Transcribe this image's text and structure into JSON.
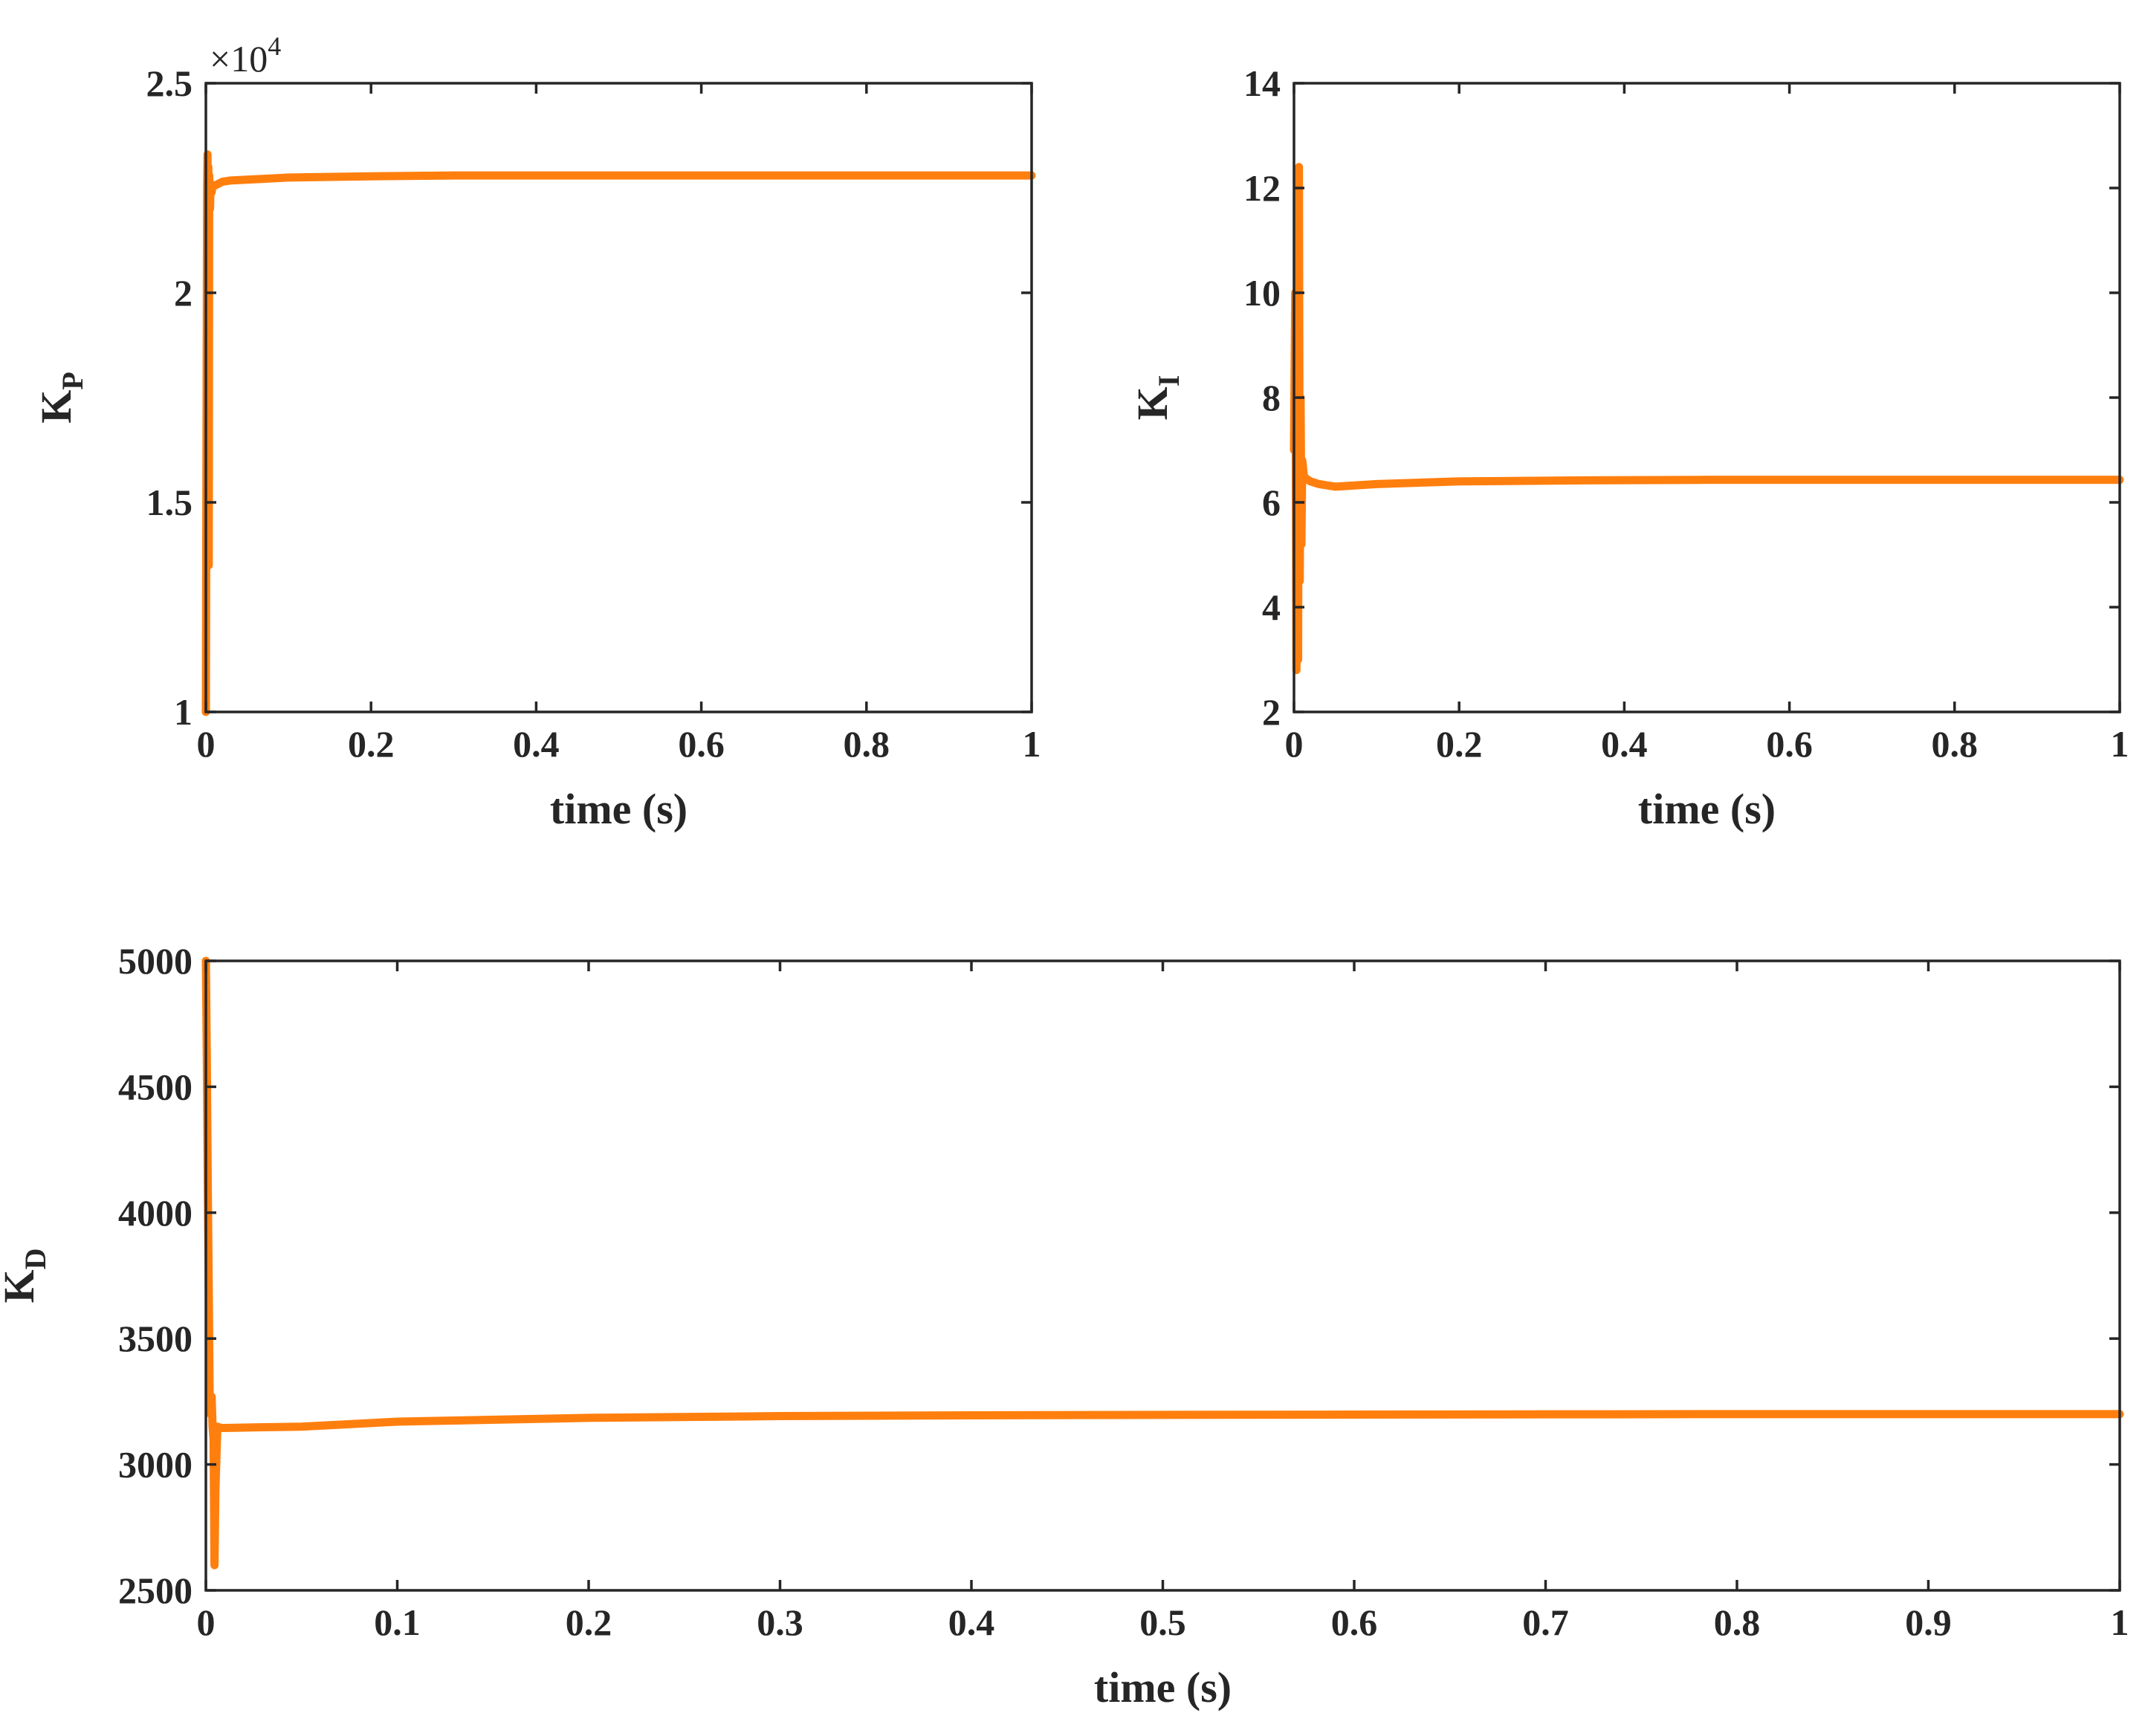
{
  "colors": {
    "series": "#ff7f0e",
    "axis": "#262626",
    "background": "#ffffff"
  },
  "chart_data": [
    {
      "id": "kp",
      "type": "line",
      "xlabel": "time (s)",
      "ylabel_main": "K",
      "ylabel_sub": "P",
      "exponent_label": "×10",
      "exponent_power": "4",
      "xlim": [
        0,
        1
      ],
      "ylim": [
        1,
        2.5
      ],
      "xticks": [
        0,
        0.2,
        0.4,
        0.6,
        0.8,
        1
      ],
      "xtick_labels": [
        "0",
        "0.2",
        "0.4",
        "0.6",
        "0.8",
        "1"
      ],
      "yticks": [
        1,
        1.5,
        2,
        2.5
      ],
      "ytick_labels": [
        "1",
        "1.5",
        "2",
        "2.5"
      ],
      "grid": false,
      "series": [
        {
          "x": [
            0,
            0.0005,
            0.001,
            0.0015,
            0.002,
            0.0025,
            0.003,
            0.0035,
            0.004,
            0.005,
            0.0055,
            0.006,
            0.007,
            0.008,
            0.01,
            0.015,
            0.02,
            0.03,
            0.05,
            0.1,
            0.2,
            0.3,
            0.5,
            0.7,
            1.0
          ],
          "y": [
            1.0,
            1.45,
            1.85,
            2.25,
            2.33,
            2.05,
            2.3,
            1.35,
            2.28,
            2.2,
            2.24,
            2.26,
            2.24,
            2.255,
            2.255,
            2.26,
            2.265,
            2.268,
            2.27,
            2.275,
            2.278,
            2.28,
            2.28,
            2.28,
            2.28
          ]
        }
      ]
    },
    {
      "id": "ki",
      "type": "line",
      "xlabel": "time (s)",
      "ylabel_main": "K",
      "ylabel_sub": "I",
      "xlim": [
        0,
        1
      ],
      "ylim": [
        2,
        14
      ],
      "xticks": [
        0,
        0.2,
        0.4,
        0.6,
        0.8,
        1
      ],
      "xtick_labels": [
        "0",
        "0.2",
        "0.4",
        "0.6",
        "0.8",
        "1"
      ],
      "yticks": [
        2,
        4,
        6,
        8,
        10,
        12,
        14
      ],
      "ytick_labels": [
        "2",
        "4",
        "6",
        "8",
        "10",
        "12",
        "14"
      ],
      "grid": false,
      "series": [
        {
          "x": [
            0,
            0.0015,
            0.003,
            0.004,
            0.005,
            0.006,
            0.007,
            0.008,
            0.009,
            0.01,
            0.012,
            0.015,
            0.02,
            0.03,
            0.05,
            0.1,
            0.2,
            0.35,
            0.5,
            0.75,
            1.0
          ],
          "y": [
            7.0,
            10.0,
            2.8,
            12.3,
            3.0,
            12.4,
            4.5,
            8.0,
            5.2,
            6.8,
            6.5,
            6.45,
            6.4,
            6.35,
            6.3,
            6.35,
            6.4,
            6.42,
            6.43,
            6.43,
            6.43
          ]
        }
      ]
    },
    {
      "id": "kd",
      "type": "line",
      "xlabel": "time (s)",
      "ylabel_main": "K",
      "ylabel_sub": "D",
      "xlim": [
        0,
        1
      ],
      "ylim": [
        2500,
        5000
      ],
      "xticks": [
        0,
        0.1,
        0.2,
        0.3,
        0.4,
        0.5,
        0.6,
        0.7,
        0.8,
        0.9,
        1
      ],
      "xtick_labels": [
        "0",
        "0.1",
        "0.2",
        "0.3",
        "0.4",
        "0.5",
        "0.6",
        "0.7",
        "0.8",
        "0.9",
        "1"
      ],
      "yticks": [
        2500,
        3000,
        3500,
        4000,
        4500,
        5000
      ],
      "ytick_labels": [
        "2500",
        "3000",
        "3500",
        "4000",
        "4500",
        "5000"
      ],
      "grid": false,
      "series": [
        {
          "x": [
            0,
            0.0005,
            0.001,
            0.0015,
            0.002,
            0.0025,
            0.003,
            0.0035,
            0.004,
            0.0045,
            0.005,
            0.006,
            0.008,
            0.01,
            0.03,
            0.05,
            0.1,
            0.2,
            0.3,
            0.4,
            0.5,
            0.6,
            0.7,
            0.8,
            0.9,
            1.0
          ],
          "y": [
            5000,
            4600,
            4100,
            3700,
            3250,
            3200,
            3270,
            3150,
            3100,
            2600,
            2900,
            3150,
            3145,
            3145,
            3148,
            3150,
            3170,
            3185,
            3192,
            3195,
            3197,
            3198,
            3199,
            3200,
            3200,
            3200
          ]
        }
      ]
    }
  ]
}
